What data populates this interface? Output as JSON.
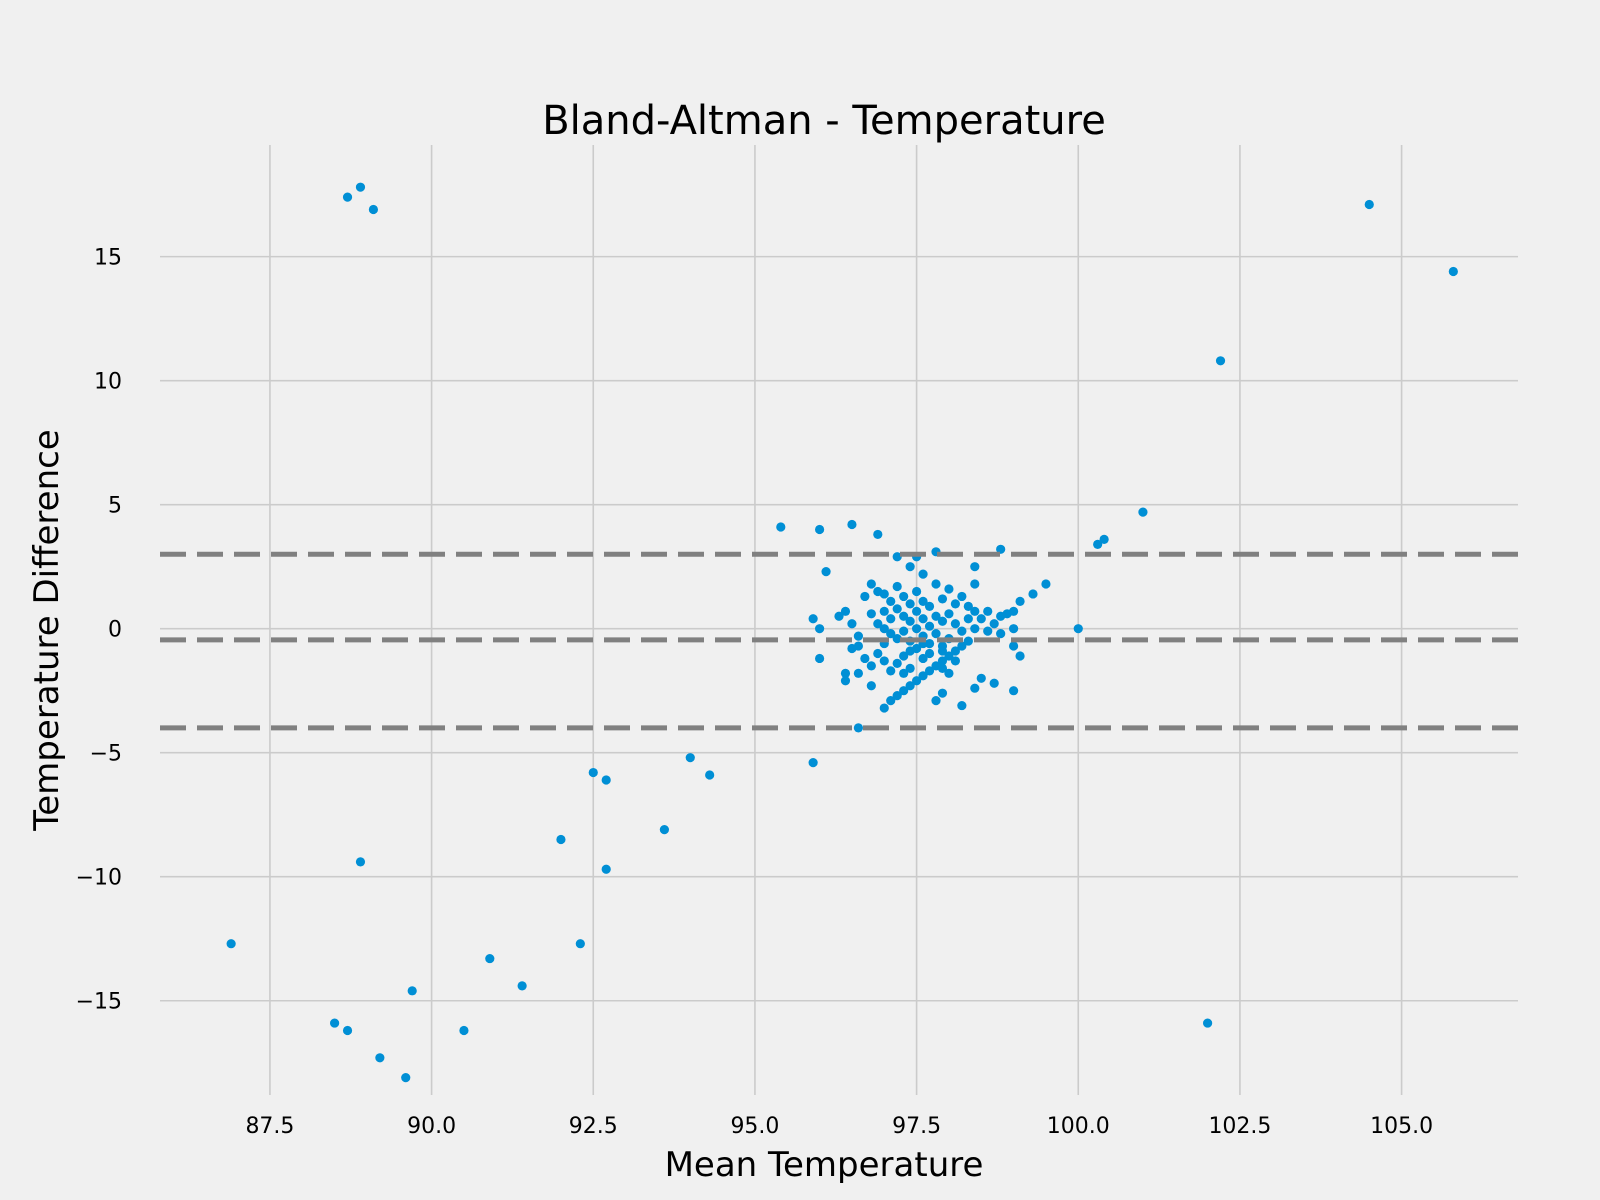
{
  "chart_data": {
    "type": "scatter",
    "title": "Bland-Altman - Temperature",
    "xlabel": "Mean Temperature",
    "ylabel": "Temperature Difference",
    "xlim": [
      85.8,
      106.8
    ],
    "ylim": [
      -18.8,
      19.5
    ],
    "xticks": [
      87.5,
      90.0,
      92.5,
      95.0,
      97.5,
      100.0,
      102.5,
      105.0
    ],
    "xtick_labels": [
      "87.5",
      "90.0",
      "92.5",
      "95.0",
      "97.5",
      "100.0",
      "102.5",
      "105.0"
    ],
    "yticks": [
      15,
      10,
      5,
      0,
      -5,
      -10,
      -15
    ],
    "ytick_labels": [
      "15",
      "10",
      "5",
      "0",
      "−5",
      "−10",
      "−15"
    ],
    "grid": true,
    "reference_lines": [
      3.0,
      -0.45,
      -4.0
    ],
    "colors": {
      "points": "#008fd5",
      "reference_lines": "#808080",
      "grid": "#cbcbcb",
      "background": "#f0f0f0"
    },
    "series": [
      {
        "points": [
          [
            88.7,
            17.4
          ],
          [
            88.9,
            17.8
          ],
          [
            89.1,
            16.9
          ],
          [
            104.5,
            17.1
          ],
          [
            105.8,
            14.4
          ],
          [
            102.2,
            10.8
          ],
          [
            101.0,
            4.7
          ],
          [
            100.4,
            3.6
          ],
          [
            100.3,
            3.4
          ],
          [
            100.0,
            0.0
          ],
          [
            95.4,
            4.1
          ],
          [
            96.0,
            4.0
          ],
          [
            96.5,
            4.2
          ],
          [
            96.9,
            3.8
          ],
          [
            98.8,
            3.2
          ],
          [
            97.8,
            3.1
          ],
          [
            97.2,
            2.9
          ],
          [
            97.5,
            2.9
          ],
          [
            98.4,
            2.5
          ],
          [
            97.4,
            2.5
          ],
          [
            96.1,
            2.3
          ],
          [
            97.6,
            2.2
          ],
          [
            99.5,
            1.8
          ],
          [
            99.3,
            1.4
          ],
          [
            99.1,
            1.1
          ],
          [
            98.4,
            1.8
          ],
          [
            95.9,
            0.4
          ],
          [
            96.0,
            0.0
          ],
          [
            96.0,
            -1.2
          ],
          [
            96.4,
            -1.8
          ],
          [
            96.4,
            -2.1
          ],
          [
            96.6,
            -4.0
          ],
          [
            95.9,
            -5.4
          ],
          [
            99.0,
            -2.5
          ],
          [
            99.1,
            -1.1
          ],
          [
            98.7,
            -2.2
          ],
          [
            98.5,
            -2.0
          ],
          [
            98.4,
            -2.4
          ],
          [
            98.2,
            -3.1
          ],
          [
            97.9,
            -2.6
          ],
          [
            97.8,
            -2.9
          ],
          [
            97.0,
            -3.2
          ],
          [
            96.3,
            0.5
          ],
          [
            96.4,
            0.7
          ],
          [
            96.5,
            0.2
          ],
          [
            96.6,
            -0.3
          ],
          [
            96.6,
            -0.7
          ],
          [
            96.7,
            1.3
          ],
          [
            96.8,
            1.8
          ],
          [
            96.8,
            0.6
          ],
          [
            96.9,
            1.5
          ],
          [
            96.9,
            0.2
          ],
          [
            97.0,
            1.4
          ],
          [
            97.0,
            0.7
          ],
          [
            97.0,
            0.0
          ],
          [
            97.0,
            -0.6
          ],
          [
            97.1,
            1.1
          ],
          [
            97.1,
            0.4
          ],
          [
            97.1,
            -0.2
          ],
          [
            97.2,
            1.7
          ],
          [
            97.2,
            0.8
          ],
          [
            97.2,
            -0.4
          ],
          [
            97.3,
            1.3
          ],
          [
            97.3,
            0.5
          ],
          [
            97.3,
            -0.1
          ],
          [
            97.4,
            1.0
          ],
          [
            97.4,
            0.3
          ],
          [
            97.4,
            -0.5
          ],
          [
            97.5,
            1.5
          ],
          [
            97.5,
            0.7
          ],
          [
            97.5,
            0.0
          ],
          [
            97.5,
            -0.8
          ],
          [
            97.6,
            1.1
          ],
          [
            97.6,
            0.4
          ],
          [
            97.6,
            -0.3
          ],
          [
            97.7,
            0.9
          ],
          [
            97.7,
            0.1
          ],
          [
            97.7,
            -0.6
          ],
          [
            97.8,
            1.8
          ],
          [
            97.8,
            0.5
          ],
          [
            97.8,
            -0.2
          ],
          [
            97.9,
            1.2
          ],
          [
            97.9,
            0.3
          ],
          [
            97.9,
            -0.9
          ],
          [
            98.0,
            1.6
          ],
          [
            98.0,
            0.6
          ],
          [
            98.0,
            -0.4
          ],
          [
            98.1,
            1.0
          ],
          [
            98.1,
            0.2
          ],
          [
            98.2,
            1.3
          ],
          [
            98.2,
            -0.1
          ],
          [
            98.3,
            0.9
          ],
          [
            98.3,
            0.4
          ],
          [
            98.4,
            0.7
          ],
          [
            98.4,
            0.0
          ],
          [
            98.5,
            0.4
          ],
          [
            98.6,
            0.7
          ],
          [
            98.6,
            -0.1
          ],
          [
            98.7,
            0.2
          ],
          [
            98.8,
            0.5
          ],
          [
            98.8,
            -0.2
          ],
          [
            98.9,
            0.6
          ],
          [
            99.0,
            0.7
          ],
          [
            99.0,
            0.0
          ],
          [
            99.0,
            -0.7
          ],
          [
            96.5,
            -0.8
          ],
          [
            96.7,
            -1.2
          ],
          [
            96.8,
            -1.5
          ],
          [
            96.9,
            -1.0
          ],
          [
            97.0,
            -1.3
          ],
          [
            97.1,
            -1.7
          ],
          [
            97.1,
            -2.9
          ],
          [
            97.2,
            -2.7
          ],
          [
            97.3,
            -2.5
          ],
          [
            97.4,
            -2.3
          ],
          [
            97.5,
            -2.1
          ],
          [
            97.6,
            -1.9
          ],
          [
            97.7,
            -1.7
          ],
          [
            97.8,
            -1.5
          ],
          [
            97.9,
            -1.3
          ],
          [
            98.0,
            -1.1
          ],
          [
            98.1,
            -0.9
          ],
          [
            98.2,
            -0.7
          ],
          [
            98.3,
            -0.5
          ],
          [
            97.2,
            -1.4
          ],
          [
            97.3,
            -1.1
          ],
          [
            97.4,
            -1.6
          ],
          [
            97.6,
            -1.2
          ],
          [
            97.7,
            -1.0
          ],
          [
            97.9,
            -0.7
          ],
          [
            98.0,
            -1.8
          ],
          [
            97.3,
            -1.8
          ],
          [
            96.8,
            -2.3
          ],
          [
            96.6,
            -1.8
          ],
          [
            97.4,
            -0.9
          ],
          [
            97.6,
            -0.6
          ],
          [
            97.9,
            -1.6
          ],
          [
            98.1,
            -1.3
          ],
          [
            94.3,
            -5.9
          ],
          [
            94.0,
            -5.2
          ],
          [
            93.6,
            -8.1
          ],
          [
            92.7,
            -6.1
          ],
          [
            92.5,
            -5.8
          ],
          [
            92.0,
            -8.5
          ],
          [
            92.7,
            -9.7
          ],
          [
            92.3,
            -12.7
          ],
          [
            91.4,
            -14.4
          ],
          [
            90.9,
            -13.3
          ],
          [
            90.5,
            -16.2
          ],
          [
            89.7,
            -14.6
          ],
          [
            89.6,
            -18.1
          ],
          [
            89.2,
            -17.3
          ],
          [
            88.9,
            -9.4
          ],
          [
            88.7,
            -16.2
          ],
          [
            88.5,
            -15.9
          ],
          [
            86.9,
            -12.7
          ],
          [
            102.0,
            -15.9
          ]
        ]
      }
    ]
  }
}
